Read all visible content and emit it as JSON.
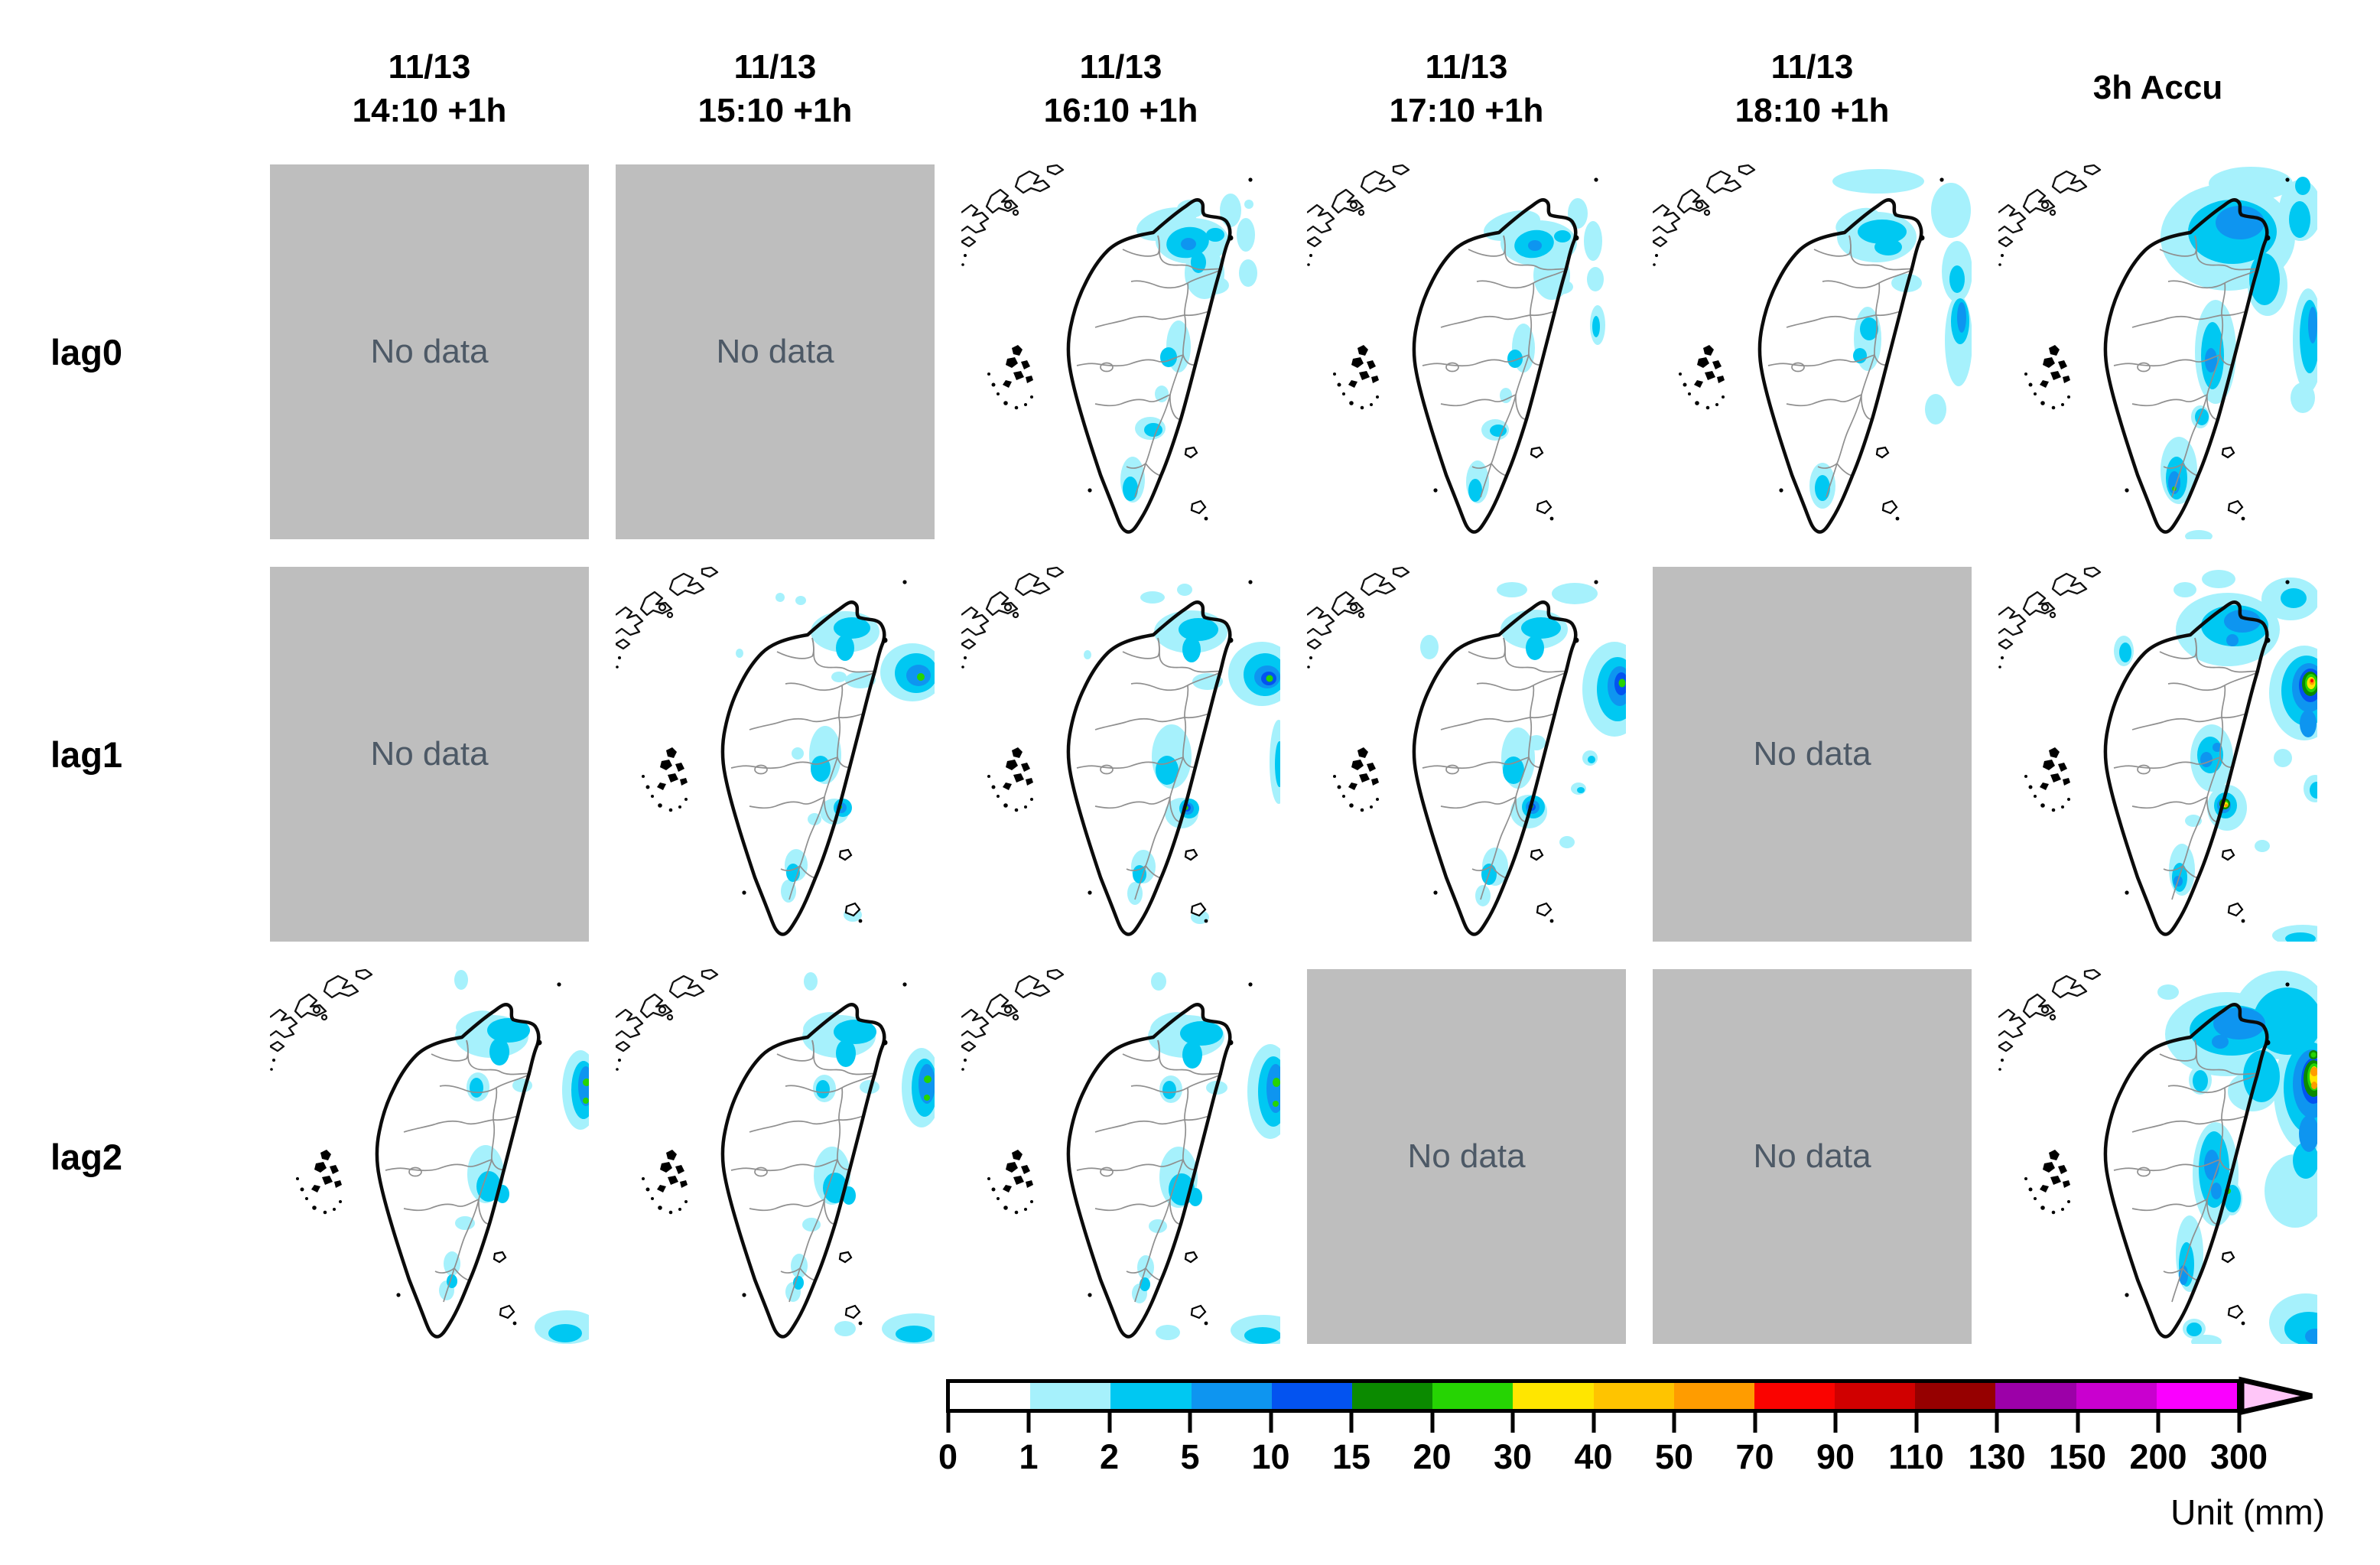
{
  "header": {
    "columns": [
      {
        "date": "11/13",
        "time": "14:10 +1h"
      },
      {
        "date": "11/13",
        "time": "15:10 +1h"
      },
      {
        "date": "11/13",
        "time": "16:10 +1h"
      },
      {
        "date": "11/13",
        "time": "17:10 +1h"
      },
      {
        "date": "11/13",
        "time": "18:10 +1h"
      },
      {
        "label": "3h Accu"
      }
    ]
  },
  "rows": [
    {
      "label": "lag0",
      "cells": [
        {
          "type": "nodata"
        },
        {
          "type": "nodata"
        },
        {
          "type": "map",
          "map": "lag0_c3"
        },
        {
          "type": "map",
          "map": "lag0_c4"
        },
        {
          "type": "map",
          "map": "lag0_c5"
        },
        {
          "type": "map",
          "map": "accu_r1"
        }
      ]
    },
    {
      "label": "lag1",
      "cells": [
        {
          "type": "nodata"
        },
        {
          "type": "map",
          "map": "lag1_c2"
        },
        {
          "type": "map",
          "map": "lag1_c3"
        },
        {
          "type": "map",
          "map": "lag1_c4"
        },
        {
          "type": "nodata"
        },
        {
          "type": "map",
          "map": "accu_r2"
        }
      ]
    },
    {
      "label": "lag2",
      "cells": [
        {
          "type": "map",
          "map": "lag2_c1"
        },
        {
          "type": "map",
          "map": "lag2_c2"
        },
        {
          "type": "map",
          "map": "lag2_c3"
        },
        {
          "type": "nodata"
        },
        {
          "type": "nodata"
        },
        {
          "type": "map",
          "map": "accu_r3"
        }
      ]
    }
  ],
  "no_data_text": "No data",
  "no_data_box_color": "#BEBEBE",
  "no_data_text_color": "#4D5966",
  "colorbar": {
    "ticks": [
      "0",
      "1",
      "2",
      "5",
      "10",
      "15",
      "20",
      "30",
      "40",
      "50",
      "70",
      "90",
      "110",
      "130",
      "150",
      "200",
      "300"
    ],
    "segment_colors": [
      "#FFFFFF",
      "#A6F1FC",
      "#00C8F2",
      "#0E95F0",
      "#0353F0",
      "#0B8A00",
      "#26D403",
      "#FFE600",
      "#FFC400",
      "#FF9C00",
      "#FA0300",
      "#D00000",
      "#960000",
      "#9C00A8",
      "#C900CF",
      "#FA00FF"
    ],
    "arrow_color": "#FFC6F8",
    "unit_label": "Unit (mm)"
  }
}
